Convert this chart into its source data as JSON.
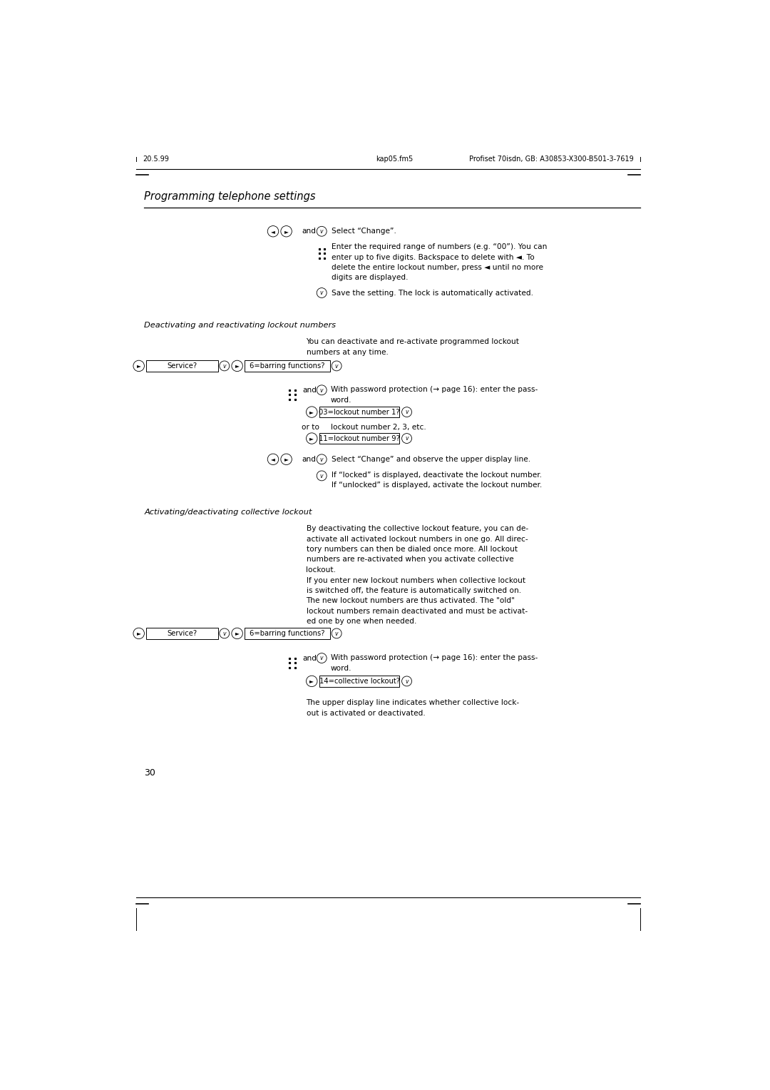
{
  "bg_color": "#ffffff",
  "page_width": 10.8,
  "page_height": 15.28,
  "header_left": "20.5.99",
  "header_center": "kap05.fm5",
  "header_right": "Profiset 70isdn, GB: A30853-X300-B501-3-7619",
  "section_title": "Programming telephone settings",
  "footer_page": "30",
  "section2_title": "Deactivating and reactivating lockout numbers",
  "section2_body": "You can deactivate and re-activate programmed lockout\nnumbers at any time.",
  "section3_title": "Activating/deactivating collective lockout",
  "section3_body_1": "By deactivating the collective lockout feature, you can de-\nactivate all activated lockout numbers in one go. All direc-\ntory numbers can then be dialed once more. All lockout\nnumbers are re-activated when you activate collective\nlockout.",
  "section3_body_2": "If you enter new lockout numbers when collective lockout\nis switched off, the feature is automatically switched on.\nThe new lockout numbers are thus activated. The \"old\"\nlockout numbers remain deactivated and must be activat-\ned one by one when needed.",
  "collective_text": "The upper display line indicates whether collective lock-\nout is activated or deactivated."
}
